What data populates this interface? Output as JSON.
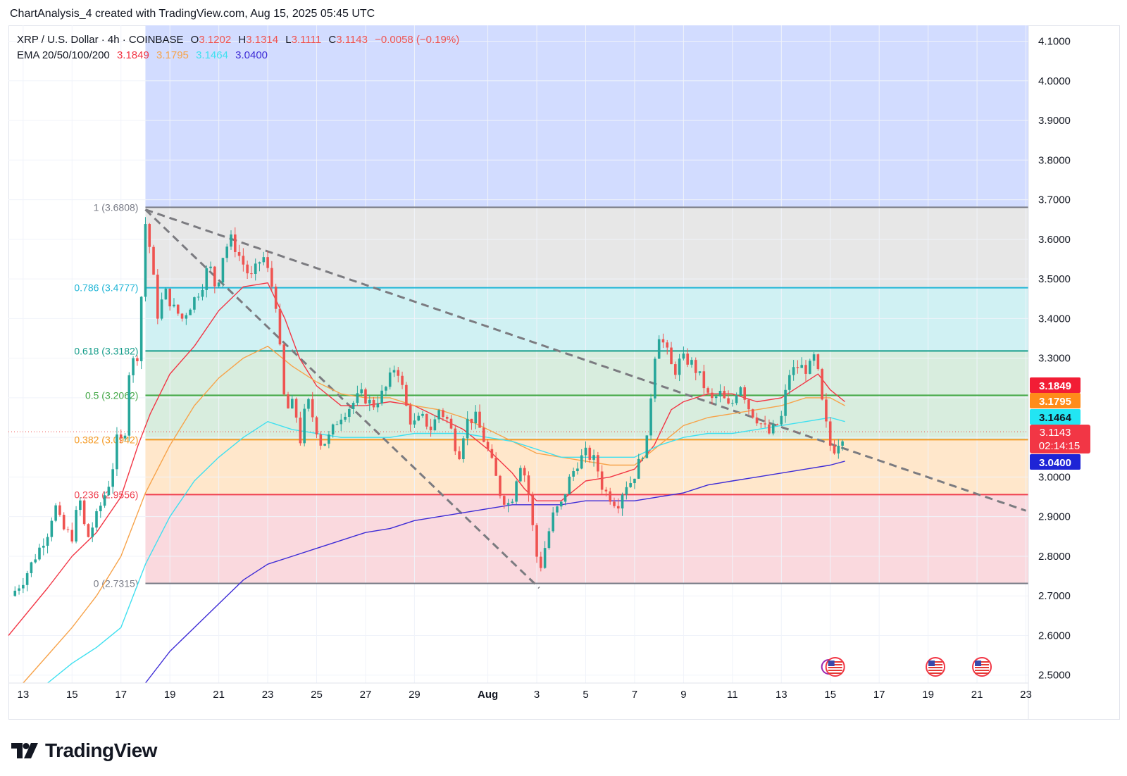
{
  "header": {
    "attribution": "ChartAnalysis_4 created with TradingView.com, Aug 15, 2025 05:45 UTC"
  },
  "legend": {
    "symbol": "XRP / U.S. Dollar · 4h · COINBASE",
    "open_label": "O",
    "open": "3.1202",
    "high_label": "H",
    "high": "3.1314",
    "low_label": "L",
    "low": "3.1111",
    "close_label": "C",
    "close": "3.1143",
    "change": "−0.0058 (−0.19%)",
    "ema_label": "EMA 20/50/100/200",
    "ema20": "3.1849",
    "ema50": "3.1795",
    "ema100": "3.1464",
    "ema200": "3.0400"
  },
  "price_badges": {
    "ema20": "3.1849",
    "ema50": "3.1795",
    "ema100": "3.1464",
    "last": "3.1143",
    "countdown": "02:14:15",
    "ema200": "3.0400"
  },
  "logo": {
    "text": "TradingView"
  },
  "colors": {
    "up": "#26a69a",
    "down": "#ef5350",
    "ema20": "#f23645",
    "ema50": "#f7a34a",
    "ema100": "#3fe0f0",
    "ema200": "#3d2bd6",
    "fib_blue_zone": "#d2dcff",
    "fib_grey_zone": "#e6e6e6",
    "fib_cyan_zone": "#cdf0f2",
    "fib_green_zone": "#d6ecdc",
    "fib_orange_zone": "#ffe6c8",
    "fib_red_zone": "#fad7dc"
  },
  "chart_data": {
    "type": "candlestick",
    "instrument": "XRP / U.S. Dollar",
    "timeframe": "4h",
    "exchange": "COINBASE",
    "y_axis": {
      "range": [
        2.48,
        4.14
      ],
      "ticks": [
        "4.1000",
        "4.0000",
        "3.9000",
        "3.8000",
        "3.7000",
        "3.6000",
        "3.5000",
        "3.4000",
        "3.3000",
        "3.2000",
        "3.1000",
        "3.0000",
        "2.9000",
        "2.8000",
        "2.7000",
        "2.6000",
        "2.5000"
      ]
    },
    "x_axis": {
      "ticks": [
        {
          "label": "13",
          "day": 0
        },
        {
          "label": "15",
          "day": 2
        },
        {
          "label": "17",
          "day": 4
        },
        {
          "label": "19",
          "day": 6
        },
        {
          "label": "21",
          "day": 8
        },
        {
          "label": "23",
          "day": 10
        },
        {
          "label": "25",
          "day": 12
        },
        {
          "label": "27",
          "day": 14
        },
        {
          "label": "29",
          "day": 16
        },
        {
          "label": "Aug",
          "day": 19
        },
        {
          "label": "3",
          "day": 21
        },
        {
          "label": "5",
          "day": 23
        },
        {
          "label": "7",
          "day": 25
        },
        {
          "label": "9",
          "day": 27
        },
        {
          "label": "11",
          "day": 29
        },
        {
          "label": "13",
          "day": 31
        },
        {
          "label": "15",
          "day": 33
        },
        {
          "label": "17",
          "day": 35
        },
        {
          "label": "19",
          "day": 37
        },
        {
          "label": "21",
          "day": 39
        },
        {
          "label": "23",
          "day": 41
        }
      ],
      "range_days": [
        -0.6,
        41.1
      ]
    },
    "fibonacci": {
      "start_day": 5.0,
      "levels": [
        {
          "label": "1 (3.6808)",
          "ratio": 1,
          "price": 3.6808
        },
        {
          "label": "0.786 (3.4777)",
          "ratio": 0.786,
          "price": 3.4777
        },
        {
          "label": "0.618 (3.3182)",
          "ratio": 0.618,
          "price": 3.3182
        },
        {
          "label": "0.5 (3.2062)",
          "ratio": 0.5,
          "price": 3.2062
        },
        {
          "label": "0.382 (3.0942)",
          "ratio": 0.382,
          "price": 3.0942
        },
        {
          "label": "0.236 (2.9556)",
          "ratio": 0.236,
          "price": 2.9556
        },
        {
          "label": "0 (2.7315)",
          "ratio": 0,
          "price": 2.7315
        }
      ]
    },
    "trendlines": [
      {
        "name": "descending-resistance",
        "from": {
          "day": 5.0,
          "price": 3.675
        },
        "to": {
          "day": 41.0,
          "price": 2.915
        },
        "style": "dashed"
      },
      {
        "name": "descending-channel-lower",
        "from": {
          "day": 5.0,
          "price": 3.675
        },
        "to": {
          "day": 21.1,
          "price": 2.72
        },
        "style": "dashed"
      }
    ],
    "keypoints": [
      [
        -0.5,
        2.7
      ],
      [
        0,
        2.74
      ],
      [
        0.5,
        2.8
      ],
      [
        1,
        2.86
      ],
      [
        1.3,
        2.93
      ],
      [
        1.6,
        2.87
      ],
      [
        2,
        2.85
      ],
      [
        2.3,
        2.95
      ],
      [
        2.6,
        2.84
      ],
      [
        3,
        2.9
      ],
      [
        3.3,
        2.95
      ],
      [
        3.6,
        3.0
      ],
      [
        3.9,
        3.12
      ],
      [
        4.1,
        3.06
      ],
      [
        4.35,
        3.28
      ],
      [
        4.7,
        3.31
      ],
      [
        5.0,
        3.64
      ],
      [
        5.2,
        3.57
      ],
      [
        5.5,
        3.41
      ],
      [
        5.8,
        3.47
      ],
      [
        6.1,
        3.43
      ],
      [
        6.5,
        3.4
      ],
      [
        6.9,
        3.44
      ],
      [
        7.3,
        3.48
      ],
      [
        7.6,
        3.54
      ],
      [
        7.9,
        3.47
      ],
      [
        8.2,
        3.57
      ],
      [
        8.5,
        3.6
      ],
      [
        8.9,
        3.55
      ],
      [
        9.3,
        3.5
      ],
      [
        9.8,
        3.56
      ],
      [
        10.1,
        3.5
      ],
      [
        10.4,
        3.42
      ],
      [
        10.6,
        3.22
      ],
      [
        10.8,
        3.17
      ],
      [
        11.1,
        3.19
      ],
      [
        11.3,
        3.08
      ],
      [
        11.6,
        3.2
      ],
      [
        11.9,
        3.14
      ],
      [
        12.2,
        3.08
      ],
      [
        12.5,
        3.1
      ],
      [
        12.9,
        3.15
      ],
      [
        13.4,
        3.18
      ],
      [
        13.8,
        3.21
      ],
      [
        14.3,
        3.18
      ],
      [
        14.8,
        3.22
      ],
      [
        15.2,
        3.28
      ],
      [
        15.4,
        3.26
      ],
      [
        15.6,
        3.19
      ],
      [
        15.9,
        3.13
      ],
      [
        16.3,
        3.15
      ],
      [
        16.7,
        3.12
      ],
      [
        17,
        3.17
      ],
      [
        17.4,
        3.14
      ],
      [
        17.8,
        3.05
      ],
      [
        18.1,
        3.14
      ],
      [
        18.5,
        3.15
      ],
      [
        18.8,
        3.1
      ],
      [
        19.1,
        3.05
      ],
      [
        19.5,
        2.96
      ],
      [
        19.8,
        2.93
      ],
      [
        20.0,
        2.95
      ],
      [
        20.3,
        3.04
      ],
      [
        20.6,
        2.99
      ],
      [
        20.9,
        2.84
      ],
      [
        21.1,
        2.76
      ],
      [
        21.4,
        2.84
      ],
      [
        21.7,
        2.91
      ],
      [
        22.0,
        2.93
      ],
      [
        22.3,
        2.99
      ],
      [
        22.7,
        3.04
      ],
      [
        23.0,
        3.06
      ],
      [
        23.4,
        3.04
      ],
      [
        23.7,
        2.97
      ],
      [
        24.0,
        2.95
      ],
      [
        24.3,
        2.93
      ],
      [
        24.6,
        2.98
      ],
      [
        24.9,
        2.99
      ],
      [
        25.2,
        3.04
      ],
      [
        25.5,
        3.09
      ],
      [
        25.8,
        3.3
      ],
      [
        26.0,
        3.36
      ],
      [
        26.3,
        3.32
      ],
      [
        26.6,
        3.26
      ],
      [
        26.9,
        3.3
      ],
      [
        27.3,
        3.29
      ],
      [
        27.7,
        3.25
      ],
      [
        28.1,
        3.19
      ],
      [
        28.5,
        3.21
      ],
      [
        28.9,
        3.17
      ],
      [
        29.3,
        3.24
      ],
      [
        29.7,
        3.17
      ],
      [
        30.1,
        3.14
      ],
      [
        30.5,
        3.11
      ],
      [
        30.8,
        3.13
      ],
      [
        31.0,
        3.15
      ],
      [
        31.3,
        3.26
      ],
      [
        31.7,
        3.28
      ],
      [
        32.1,
        3.27
      ],
      [
        32.4,
        3.31
      ],
      [
        32.6,
        3.21
      ],
      [
        32.8,
        3.14
      ],
      [
        33.0,
        3.08
      ],
      [
        33.2,
        3.07
      ],
      [
        33.4,
        3.1
      ],
      [
        33.6,
        3.11
      ]
    ],
    "ema_lines": [
      {
        "name": "EMA 20",
        "points": [
          [
            -0.6,
            2.6
          ],
          [
            1,
            2.72
          ],
          [
            2,
            2.8
          ],
          [
            3,
            2.86
          ],
          [
            4,
            2.95
          ],
          [
            4.7,
            3.08
          ],
          [
            5.2,
            3.16
          ],
          [
            6,
            3.26
          ],
          [
            7,
            3.33
          ],
          [
            8,
            3.42
          ],
          [
            9,
            3.48
          ],
          [
            10,
            3.49
          ],
          [
            10.7,
            3.4
          ],
          [
            11.3,
            3.3
          ],
          [
            12,
            3.23
          ],
          [
            13,
            3.18
          ],
          [
            14,
            3.18
          ],
          [
            15,
            3.19
          ],
          [
            16,
            3.18
          ],
          [
            17,
            3.15
          ],
          [
            18,
            3.12
          ],
          [
            19,
            3.07
          ],
          [
            20,
            3.01
          ],
          [
            20.5,
            2.97
          ],
          [
            21,
            2.94
          ],
          [
            22,
            2.94
          ],
          [
            23,
            2.99
          ],
          [
            24,
            3.0
          ],
          [
            25,
            3.02
          ],
          [
            25.8,
            3.08
          ],
          [
            26.5,
            3.17
          ],
          [
            27,
            3.19
          ],
          [
            28,
            3.21
          ],
          [
            29,
            3.21
          ],
          [
            30,
            3.19
          ],
          [
            31,
            3.2
          ],
          [
            32,
            3.24
          ],
          [
            32.5,
            3.26
          ],
          [
            33,
            3.22
          ],
          [
            33.6,
            3.19
          ]
        ]
      },
      {
        "name": "EMA 50",
        "points": [
          [
            0,
            2.48
          ],
          [
            1,
            2.55
          ],
          [
            2,
            2.62
          ],
          [
            3,
            2.7
          ],
          [
            4,
            2.8
          ],
          [
            5,
            2.96
          ],
          [
            6,
            3.08
          ],
          [
            7,
            3.18
          ],
          [
            8,
            3.25
          ],
          [
            9,
            3.3
          ],
          [
            10,
            3.33
          ],
          [
            11,
            3.28
          ],
          [
            12,
            3.24
          ],
          [
            13,
            3.21
          ],
          [
            14,
            3.2
          ],
          [
            15,
            3.2
          ],
          [
            16,
            3.18
          ],
          [
            17,
            3.17
          ],
          [
            18,
            3.15
          ],
          [
            19,
            3.12
          ],
          [
            20,
            3.09
          ],
          [
            21,
            3.06
          ],
          [
            22,
            3.05
          ],
          [
            23,
            3.04
          ],
          [
            24,
            3.03
          ],
          [
            25,
            3.03
          ],
          [
            26,
            3.08
          ],
          [
            27,
            3.13
          ],
          [
            28,
            3.15
          ],
          [
            29,
            3.16
          ],
          [
            30,
            3.17
          ],
          [
            31,
            3.18
          ],
          [
            32,
            3.2
          ],
          [
            33,
            3.2
          ],
          [
            33.6,
            3.18
          ]
        ]
      },
      {
        "name": "EMA 100",
        "points": [
          [
            1.0,
            2.48
          ],
          [
            2,
            2.53
          ],
          [
            3,
            2.57
          ],
          [
            4,
            2.62
          ],
          [
            5,
            2.78
          ],
          [
            6,
            2.9
          ],
          [
            7,
            2.99
          ],
          [
            8,
            3.05
          ],
          [
            9,
            3.1
          ],
          [
            10,
            3.14
          ],
          [
            11,
            3.12
          ],
          [
            12,
            3.11
          ],
          [
            13,
            3.1
          ],
          [
            14,
            3.1
          ],
          [
            15,
            3.1
          ],
          [
            16,
            3.11
          ],
          [
            17,
            3.11
          ],
          [
            18,
            3.11
          ],
          [
            19,
            3.1
          ],
          [
            20,
            3.09
          ],
          [
            21,
            3.07
          ],
          [
            22,
            3.05
          ],
          [
            23,
            3.05
          ],
          [
            24,
            3.05
          ],
          [
            25,
            3.05
          ],
          [
            26,
            3.08
          ],
          [
            27,
            3.1
          ],
          [
            28,
            3.11
          ],
          [
            29,
            3.11
          ],
          [
            30,
            3.12
          ],
          [
            31,
            3.13
          ],
          [
            32,
            3.14
          ],
          [
            33,
            3.15
          ],
          [
            33.6,
            3.14
          ]
        ]
      },
      {
        "name": "EMA 200",
        "points": [
          [
            5.0,
            2.48
          ],
          [
            6,
            2.56
          ],
          [
            7,
            2.62
          ],
          [
            8,
            2.68
          ],
          [
            9,
            2.74
          ],
          [
            10,
            2.78
          ],
          [
            11,
            2.8
          ],
          [
            12,
            2.82
          ],
          [
            13,
            2.84
          ],
          [
            14,
            2.86
          ],
          [
            15,
            2.87
          ],
          [
            16,
            2.89
          ],
          [
            17,
            2.9
          ],
          [
            18,
            2.91
          ],
          [
            19,
            2.92
          ],
          [
            20,
            2.93
          ],
          [
            21,
            2.93
          ],
          [
            22,
            2.93
          ],
          [
            23,
            2.94
          ],
          [
            24,
            2.94
          ],
          [
            25,
            2.94
          ],
          [
            26,
            2.95
          ],
          [
            27,
            2.96
          ],
          [
            28,
            2.98
          ],
          [
            29,
            2.99
          ],
          [
            30,
            3.0
          ],
          [
            31,
            3.01
          ],
          [
            32,
            3.02
          ],
          [
            33,
            3.03
          ],
          [
            33.6,
            3.04
          ]
        ]
      }
    ],
    "last_price": 3.1143,
    "events": [
      {
        "day": 33.2,
        "count": 2
      },
      {
        "day": 37.3,
        "count": 1
      },
      {
        "day": 39.2,
        "count": 1
      }
    ]
  }
}
